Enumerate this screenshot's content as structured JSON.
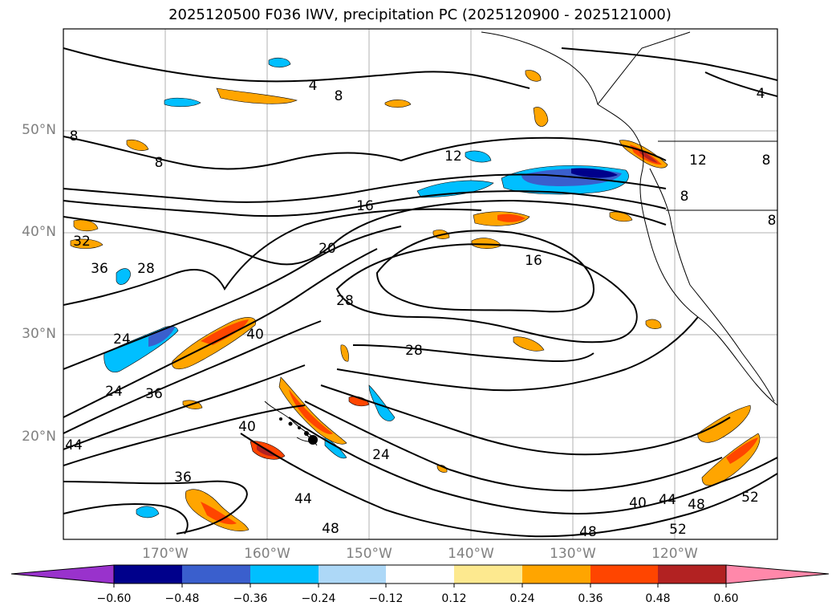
{
  "title": "2025120500 F036 IWV, precipitation PC (2025120900 - 2025121000)",
  "map": {
    "lat_ticks": [
      "50°N",
      "40°N",
      "30°N",
      "20°N"
    ],
    "lon_ticks": [
      "170°W",
      "160°W",
      "150°W",
      "140°W",
      "130°W",
      "120°W"
    ],
    "contour_labels": [
      "4",
      "4",
      "8",
      "8",
      "8",
      "8",
      "8",
      "12",
      "12",
      "16",
      "16",
      "20",
      "24",
      "24",
      "24",
      "28",
      "28",
      "28",
      "32",
      "36",
      "36",
      "36",
      "40",
      "40",
      "40",
      "44",
      "44",
      "44",
      "48",
      "48",
      "48",
      "52",
      "52",
      "8"
    ]
  },
  "colorbar": {
    "tick_labels": [
      "−0.60",
      "−0.48",
      "−0.36",
      "−0.24",
      "−0.12",
      "0.12",
      "0.24",
      "0.36",
      "0.48",
      "0.60"
    ],
    "colors": [
      "#9932cc",
      "#00008b",
      "#3a5fcd",
      "#00bfff",
      "#add8f7",
      "#ffffff",
      "#fde98f",
      "#ffa500",
      "#ff4500",
      "#b22222",
      "#ff88aa"
    ]
  }
}
